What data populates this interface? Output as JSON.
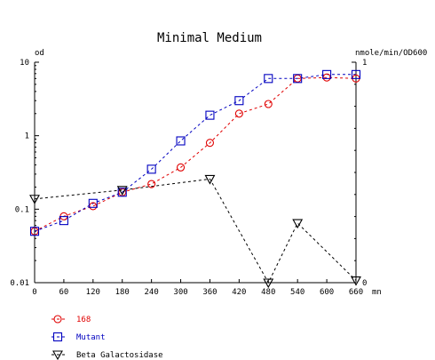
{
  "chart_data": {
    "type": "line",
    "title": "Minimal Medium",
    "xlabel": "mn",
    "ylabel_left": "od",
    "ylabel_right": "nmole/min/OD600",
    "x_ticks": [
      0,
      60,
      120,
      180,
      240,
      300,
      360,
      420,
      480,
      540,
      600,
      660
    ],
    "y_left_scale": "log",
    "y_left_ticks": [
      {
        "value": 0.01,
        "label": "0.01"
      },
      {
        "value": 0.1,
        "label": "0.1"
      },
      {
        "value": 1,
        "label": "1"
      },
      {
        "value": 10,
        "label": "10"
      }
    ],
    "y_left_lim": [
      0.01,
      10
    ],
    "y_right_scale": "linear",
    "y_right_ticks": [
      {
        "value": 0,
        "label": "0"
      },
      {
        "value": 1,
        "label": "1"
      }
    ],
    "y_right_lim": [
      0,
      1
    ],
    "xlim": [
      0,
      660
    ],
    "grid": false,
    "legend_position": "bottom-left",
    "series": [
      {
        "name": "168",
        "axis": "left",
        "marker": "circle",
        "color": "#e00000",
        "x": [
          0,
          60,
          120,
          180,
          240,
          300,
          360,
          420,
          480,
          540,
          600,
          660
        ],
        "y": [
          0.05,
          0.08,
          0.11,
          0.17,
          0.22,
          0.37,
          0.8,
          2.0,
          2.7,
          6.0,
          6.2,
          6.0
        ]
      },
      {
        "name": "Mutant",
        "axis": "left",
        "marker": "square",
        "color": "#0000c0",
        "x": [
          0,
          60,
          120,
          180,
          240,
          300,
          360,
          420,
          480,
          540,
          600,
          660
        ],
        "y": [
          0.05,
          0.07,
          0.12,
          0.17,
          0.35,
          0.85,
          1.9,
          3.0,
          6.0,
          6.0,
          6.8,
          6.8
        ]
      },
      {
        "name": "Beta Galactosidase",
        "axis": "right",
        "marker": "triangle-down",
        "color": "#000000",
        "x": [
          0,
          180,
          360,
          480,
          540,
          660
        ],
        "y": [
          0.38,
          0.42,
          0.47,
          0.0,
          0.27,
          0.01
        ]
      }
    ]
  }
}
